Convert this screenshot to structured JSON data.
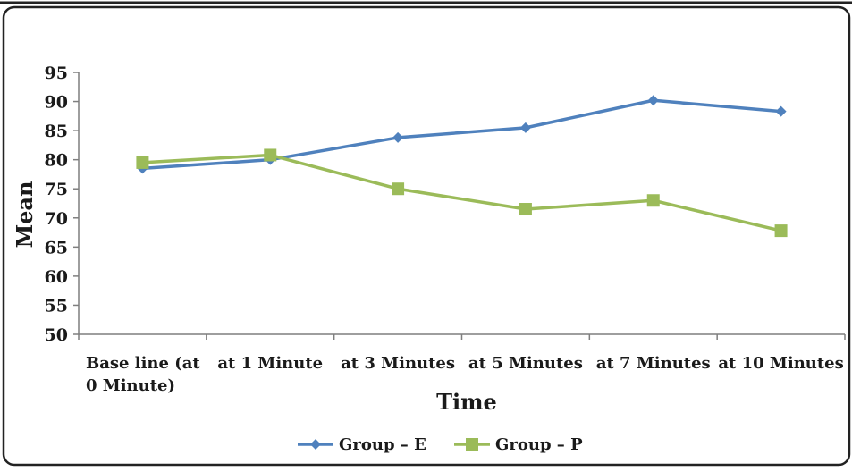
{
  "chart_data": {
    "type": "line",
    "title": "",
    "xlabel": "Time",
    "ylabel": "Mean",
    "ylim": [
      50,
      95
    ],
    "yticks": [
      50,
      55,
      60,
      65,
      70,
      75,
      80,
      85,
      90,
      95
    ],
    "categories": [
      [
        "Base line (at",
        "0 Minute)"
      ],
      [
        "at 1 Minute"
      ],
      [
        "at 3 Minutes"
      ],
      [
        "at 5 Minutes"
      ],
      [
        "at 7 Minutes"
      ],
      [
        "at 10 Minutes"
      ]
    ],
    "grid": false,
    "legend_position": "bottom",
    "series": [
      {
        "name": "Group – E",
        "values": [
          78.5,
          80.0,
          83.8,
          85.5,
          90.2,
          88.3
        ],
        "color": "#4F81BD",
        "marker": "diamond"
      },
      {
        "name": "Group – P",
        "values": [
          79.5,
          80.8,
          75.0,
          71.5,
          73.0,
          67.8
        ],
        "color": "#9BBB59",
        "marker": "square"
      }
    ]
  }
}
